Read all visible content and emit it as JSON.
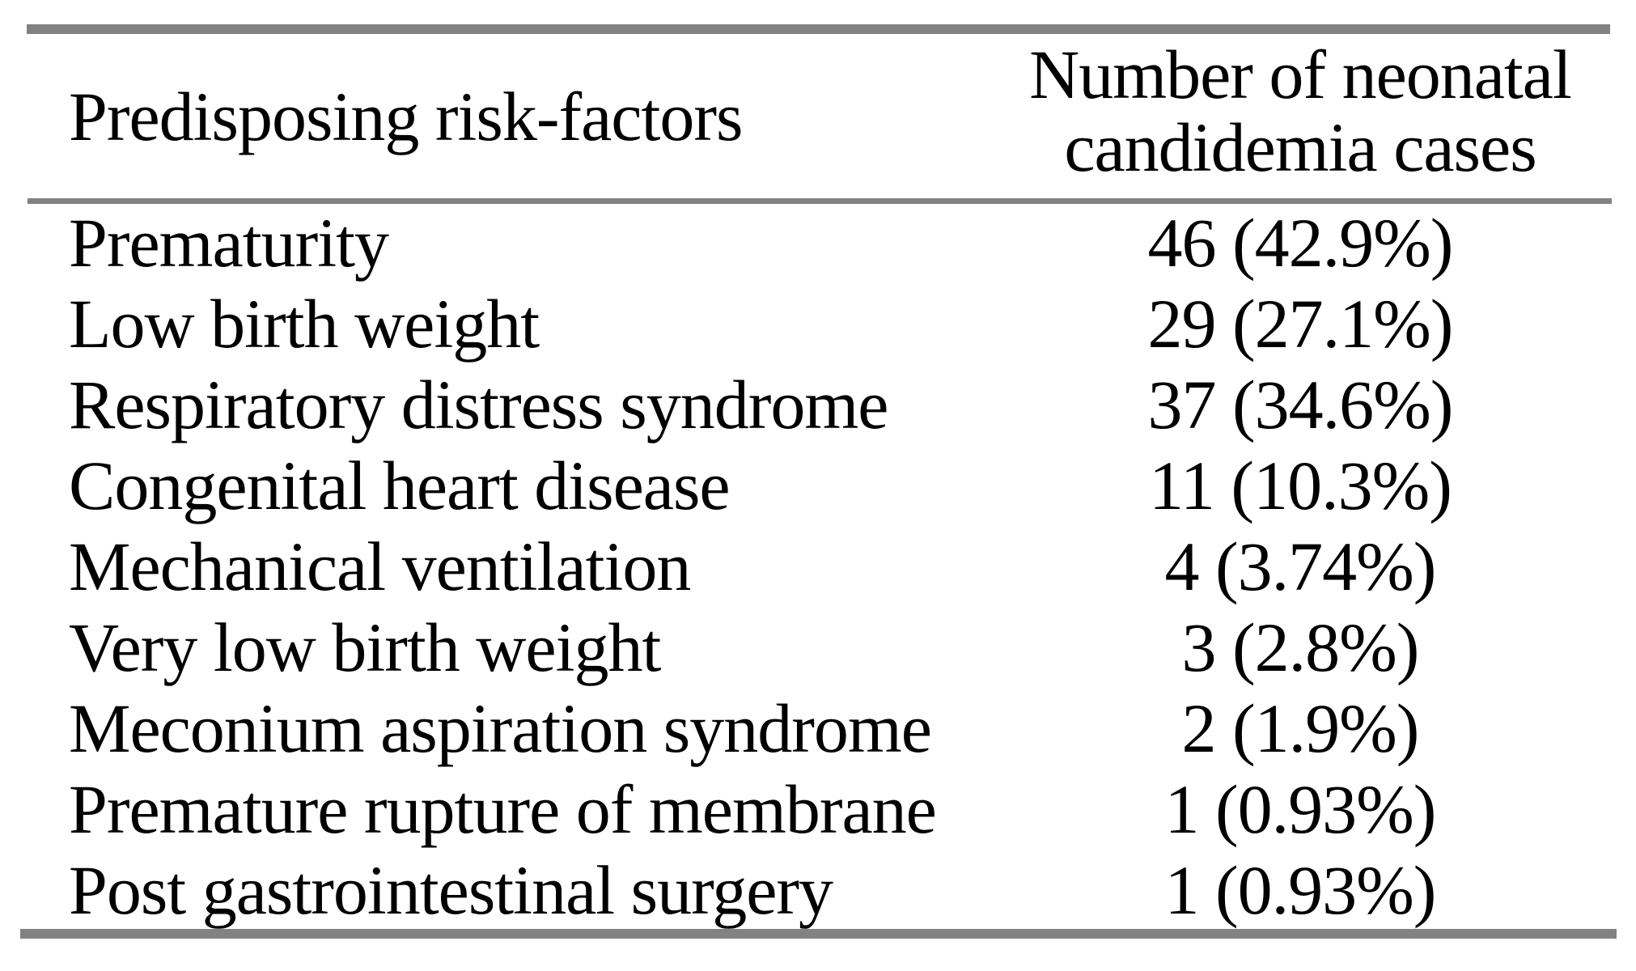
{
  "table": {
    "header": {
      "factor_label": "Predisposing risk-factors",
      "cases_label_line1": "Number of neonatal",
      "cases_label_line2": "candidemia cases"
    },
    "rows": [
      {
        "factor": "Prematurity",
        "value": "46 (42.9%)"
      },
      {
        "factor": "Low birth weight",
        "value": "29 (27.1%)"
      },
      {
        "factor": "Respiratory distress syndrome",
        "value": "37 (34.6%)"
      },
      {
        "factor": "Congenital heart disease",
        "value": "11 (10.3%)"
      },
      {
        "factor": "Mechanical ventilation",
        "value": "4 (3.74%)"
      },
      {
        "factor": "Very low birth weight",
        "value": "3 (2.8%)"
      },
      {
        "factor": "Meconium aspiration syndrome",
        "value": "2 (1.9%)"
      },
      {
        "factor": "Premature rupture of membrane",
        "value": "1 (0.93%)"
      },
      {
        "factor": "Post gastrointestinal surgery",
        "value": "1 (0.93%)"
      }
    ]
  },
  "colors": {
    "rule_gray": "#828282",
    "text": "#000000",
    "background": "#ffffff"
  }
}
